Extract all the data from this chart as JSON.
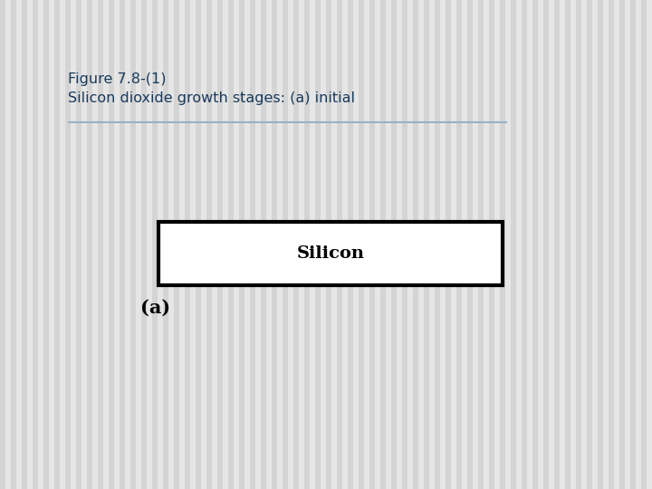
{
  "title_line1": "Figure 7.8-(1)",
  "title_line2": "Silicon dioxide growth stages: (a) initial",
  "title_color": "#1a3a5c",
  "title_fontsize": 11.5,
  "bg_stripe_light": "#e8e8e8",
  "bg_stripe_dark": "#d0d0d0",
  "inner_panel_color": "#f8f8f8",
  "divider_color": "#9ab0c8",
  "silicon_label": "Silicon",
  "silicon_fontsize": 14,
  "subfig_label": "(a)",
  "subfig_label_fontsize": 15
}
